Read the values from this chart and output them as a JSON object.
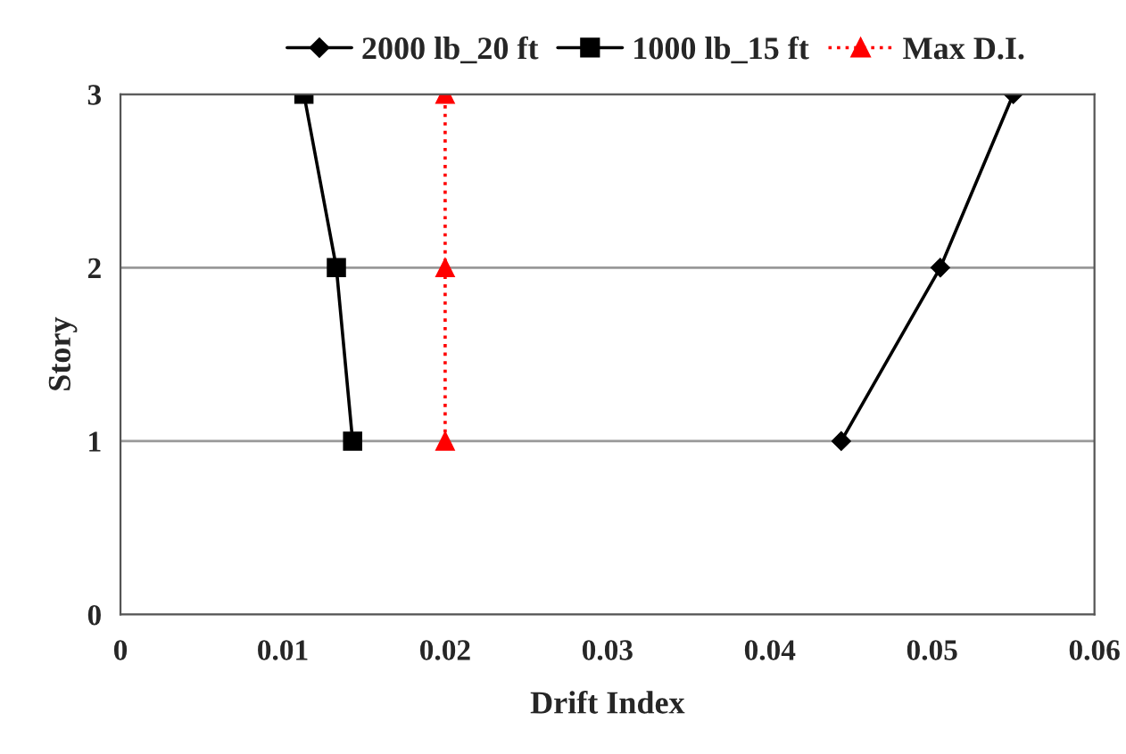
{
  "chart_data": {
    "type": "line",
    "xlabel": "Drift Index",
    "ylabel": "Story",
    "series": [
      {
        "name": "2000 lb_20 ft",
        "color": "#000000",
        "marker": "diamond",
        "line_style": "solid",
        "x": [
          0.0444,
          0.0505,
          0.055
        ],
        "values": [
          1,
          2,
          3
        ]
      },
      {
        "name": "1000 lb_15 ft",
        "color": "#000000",
        "marker": "square",
        "line_style": "solid",
        "x": [
          0.0143,
          0.0133,
          0.0113
        ],
        "values": [
          1,
          2,
          3
        ]
      },
      {
        "name": "Max D.I.",
        "color": "#ff0000",
        "marker": "triangle",
        "line_style": "dotted",
        "x": [
          0.02,
          0.02,
          0.02
        ],
        "values": [
          1,
          2,
          3
        ]
      }
    ],
    "xlim": [
      0,
      0.06
    ],
    "xticks": [
      0,
      0.01,
      0.02,
      0.03,
      0.04,
      0.05,
      0.06
    ],
    "ylim": [
      0,
      3
    ],
    "yticks": [
      0,
      1,
      2,
      3
    ],
    "grid": "y",
    "legend": "top"
  }
}
